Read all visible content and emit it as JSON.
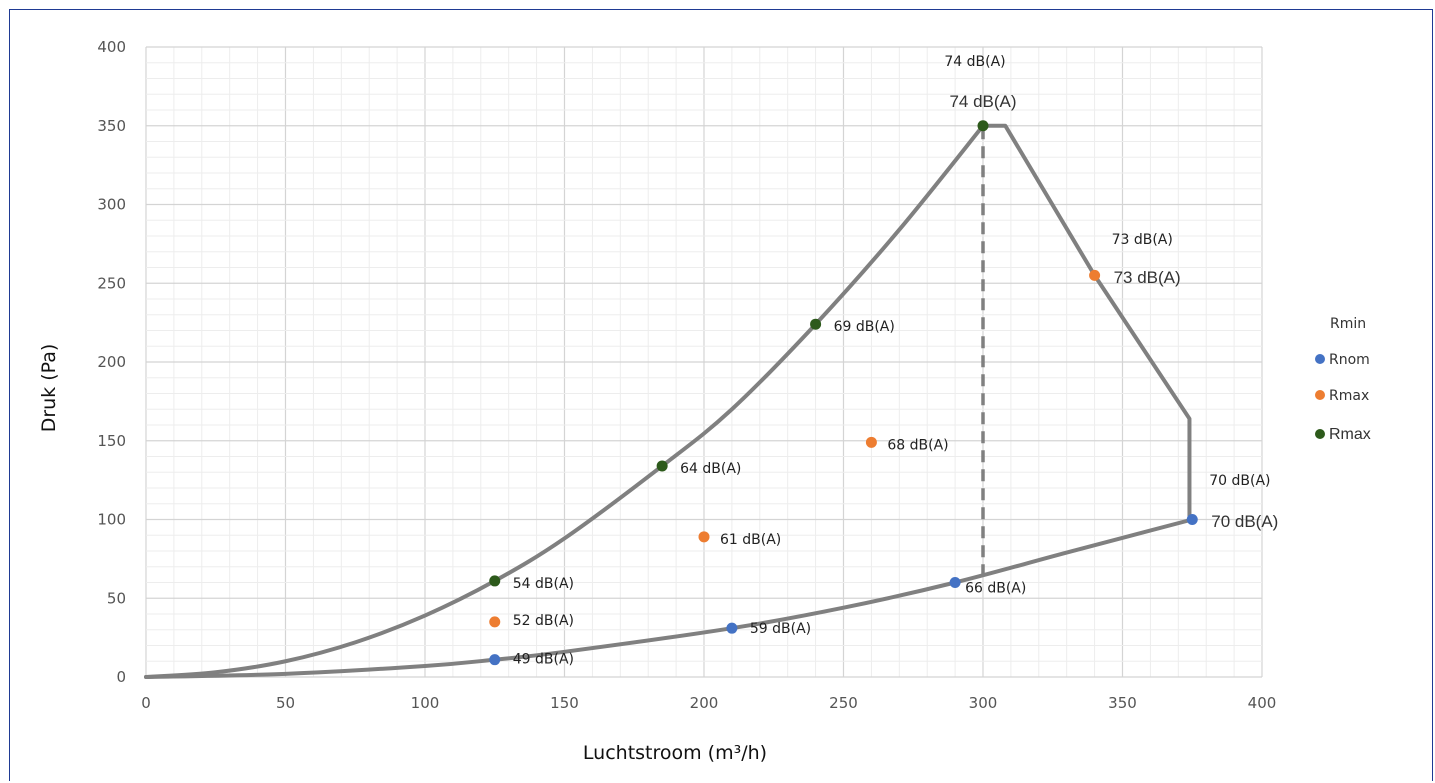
{
  "chart_data": {
    "type": "scatter",
    "xlabel": "Luchtstroom (m³/h)",
    "ylabel": "Druk (Pa)",
    "xlim": [
      0,
      400
    ],
    "ylim": [
      0,
      400
    ],
    "xticks": [
      0,
      50,
      100,
      150,
      200,
      250,
      300,
      350,
      400
    ],
    "yticks": [
      0,
      50,
      100,
      150,
      200,
      250,
      300,
      350,
      400
    ],
    "grid": true,
    "legend_position": "right",
    "legend_title": "Rmin",
    "series": [
      {
        "name": "Rnom",
        "color": "#4472c4",
        "points": [
          {
            "x": 125,
            "y": 11,
            "label": "49 dB(A)"
          },
          {
            "x": 210,
            "y": 31,
            "label": "59 dB(A)"
          },
          {
            "x": 290,
            "y": 60,
            "label": "66 dB(A)"
          },
          {
            "x": 375,
            "y": 100,
            "label": "70 dB(A)"
          }
        ]
      },
      {
        "name": "Rmax",
        "color": "#ed7d31",
        "points": [
          {
            "x": 125,
            "y": 35,
            "label": "52 dB(A)"
          },
          {
            "x": 200,
            "y": 89,
            "label": "61 dB(A)"
          },
          {
            "x": 260,
            "y": 149,
            "label": "68 dB(A)"
          },
          {
            "x": 340,
            "y": 255,
            "label": "73 dB(A)"
          }
        ]
      },
      {
        "name": "Rmax",
        "color": "#2d5a1b",
        "points": [
          {
            "x": 125,
            "y": 61,
            "label": "54 dB(A)"
          },
          {
            "x": 185,
            "y": 134,
            "label": "64 dB(A)"
          },
          {
            "x": 240,
            "y": 224,
            "label": "69 dB(A)"
          },
          {
            "x": 300,
            "y": 350,
            "label": "74 dB(A)"
          }
        ]
      }
    ],
    "overlay_labels": [
      {
        "text": "74 dB(A)",
        "x": 300,
        "y": 350
      },
      {
        "text": "73 dB(A)",
        "x": 340,
        "y": 255
      },
      {
        "text": "70 dB(A)",
        "x": 375,
        "y": 100
      }
    ],
    "envelope": {
      "upper_curve": [
        [
          0,
          0
        ],
        [
          25,
          3
        ],
        [
          50,
          10
        ],
        [
          75,
          22
        ],
        [
          100,
          39
        ],
        [
          125,
          61
        ],
        [
          150,
          88
        ],
        [
          185,
          134
        ],
        [
          210,
          170
        ],
        [
          240,
          224
        ],
        [
          270,
          284
        ],
        [
          300,
          350
        ]
      ],
      "lower_curve": [
        [
          0,
          0
        ],
        [
          50,
          2
        ],
        [
          100,
          7
        ],
        [
          125,
          11
        ],
        [
          150,
          16
        ],
        [
          210,
          31
        ],
        [
          250,
          44
        ],
        [
          290,
          60
        ],
        [
          330,
          79
        ],
        [
          375,
          100
        ]
      ],
      "outline": [
        [
          300,
          350
        ],
        [
          308,
          350
        ],
        [
          340,
          255
        ],
        [
          374,
          164
        ],
        [
          374,
          100
        ]
      ],
      "dashed_vertical": {
        "x": 300,
        "y_from": 64,
        "y_to": 350
      }
    }
  }
}
